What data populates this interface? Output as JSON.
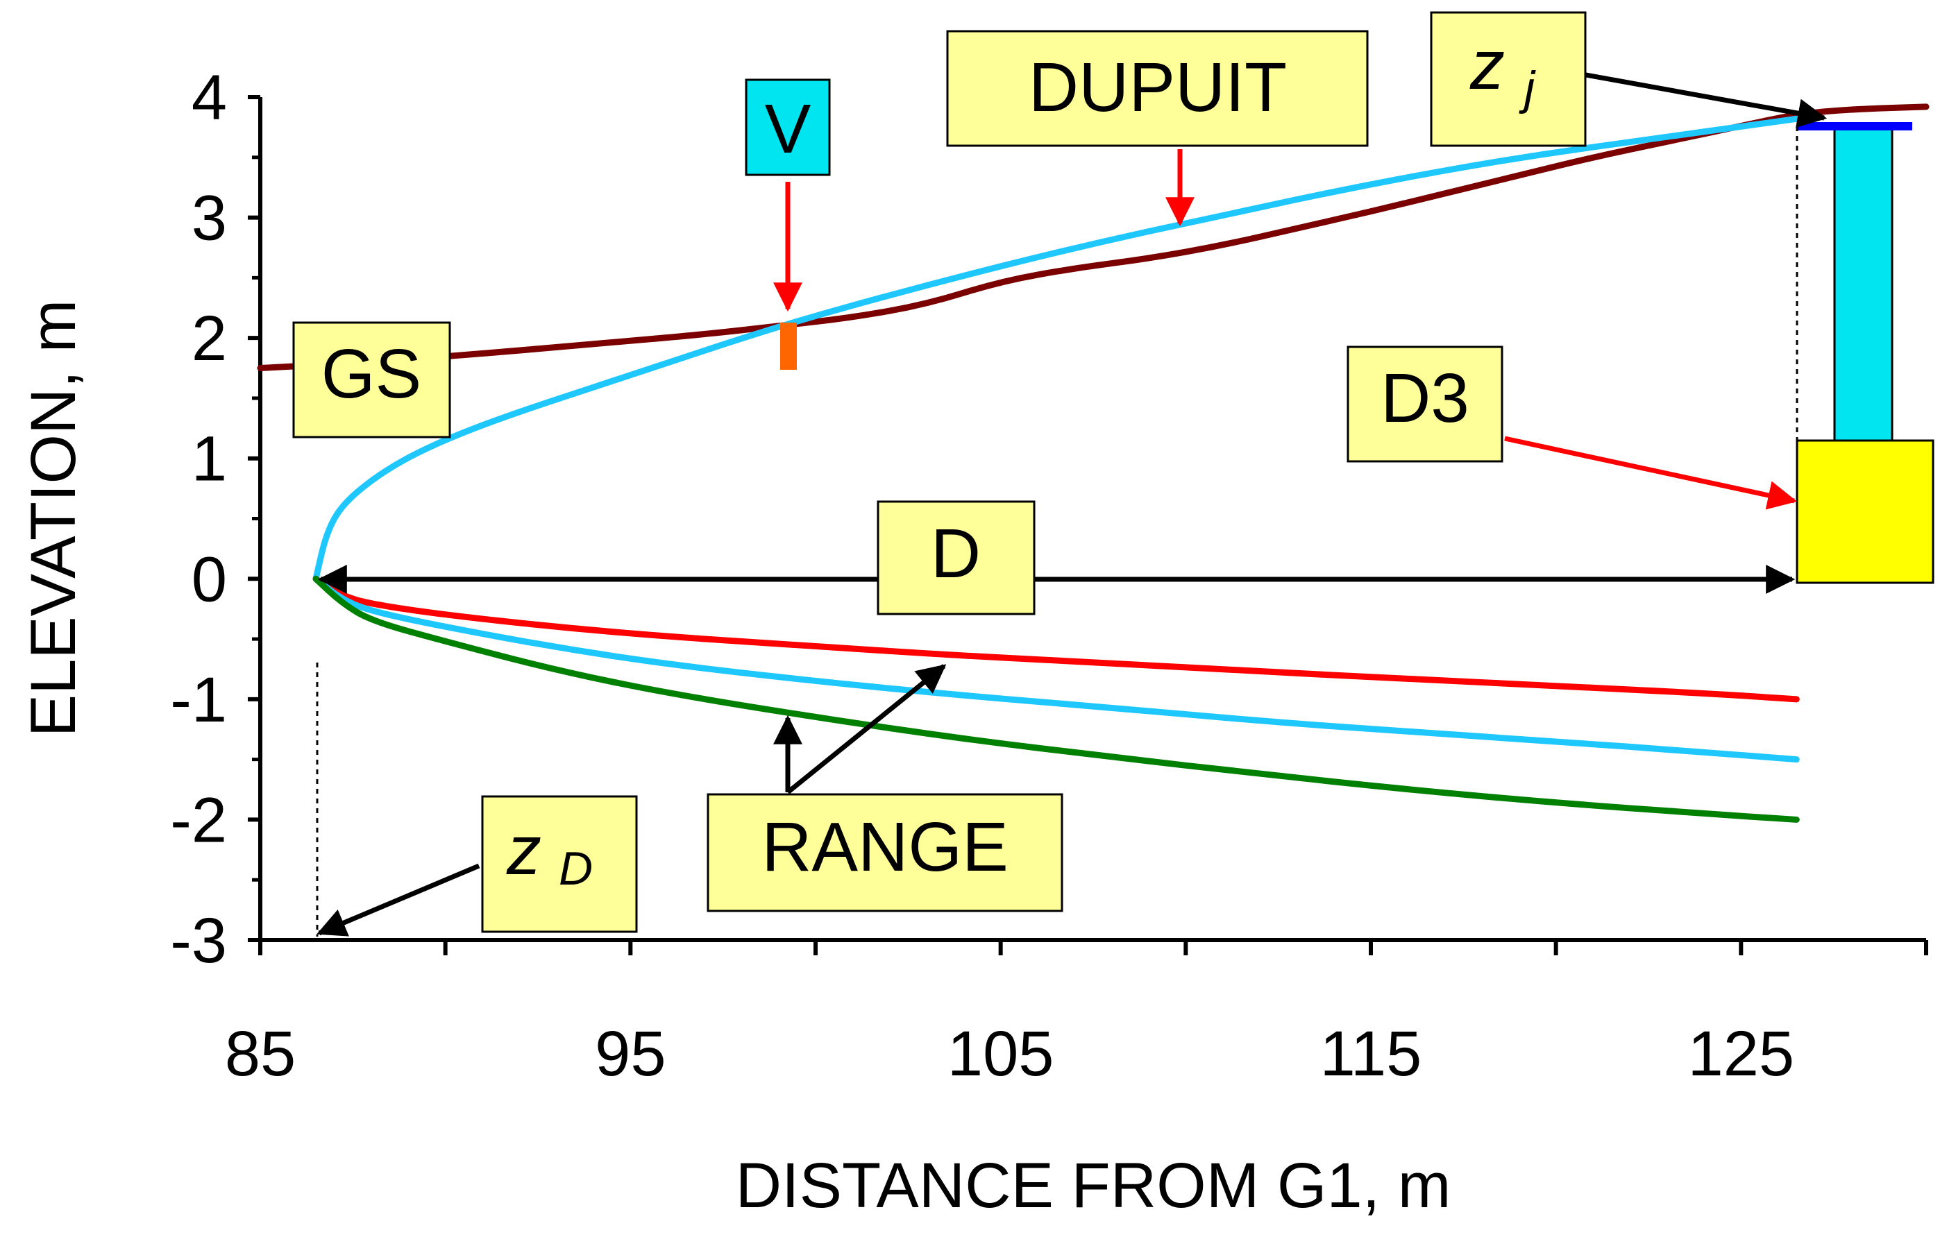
{
  "chart_data": {
    "type": "line",
    "xlabel": "DISTANCE FROM G1, m",
    "ylabel": "ELEVATION, m",
    "xlim": [
      85,
      130
    ],
    "ylim": [
      -3,
      4
    ],
    "x_ticks": [
      "85",
      "95",
      "105",
      "115",
      "125"
    ],
    "y_ticks": [
      "4",
      "3",
      "2",
      "1",
      "0",
      "-1",
      "-2",
      "-3"
    ],
    "grid": false,
    "series": [
      {
        "name": "GS",
        "color": "#7b0000",
        "points": [
          [
            85,
            1.75
          ],
          [
            88,
            1.8
          ],
          [
            91,
            1.87
          ],
          [
            94,
            1.95
          ],
          [
            97,
            2.03
          ],
          [
            99,
            2.1
          ],
          [
            101,
            2.17
          ],
          [
            103,
            2.28
          ],
          [
            105,
            2.47
          ],
          [
            107,
            2.58
          ],
          [
            109,
            2.66
          ],
          [
            111,
            2.77
          ],
          [
            113,
            2.91
          ],
          [
            115,
            3.05
          ],
          [
            117,
            3.2
          ],
          [
            119,
            3.35
          ],
          [
            121,
            3.5
          ],
          [
            123,
            3.63
          ],
          [
            125,
            3.76
          ],
          [
            126.5,
            3.86
          ],
          [
            128,
            3.9
          ],
          [
            130,
            3.92
          ]
        ]
      },
      {
        "name": "DUPUIT",
        "color": "#1ec8ff",
        "points": [
          [
            86.5,
            0.0
          ],
          [
            86.8,
            0.4
          ],
          [
            87.3,
            0.65
          ],
          [
            88.5,
            0.93
          ],
          [
            90,
            1.16
          ],
          [
            92,
            1.39
          ],
          [
            95,
            1.69
          ],
          [
            99,
            2.1
          ],
          [
            103,
            2.44
          ],
          [
            107,
            2.75
          ],
          [
            111,
            3.02
          ],
          [
            115,
            3.28
          ],
          [
            119,
            3.5
          ],
          [
            123,
            3.67
          ],
          [
            126.5,
            3.82
          ]
        ]
      },
      {
        "name": "",
        "color": "#ff0000",
        "points": [
          [
            86.5,
            0.0
          ],
          [
            87.2,
            -0.14
          ],
          [
            88,
            -0.21
          ],
          [
            90,
            -0.3
          ],
          [
            93,
            -0.4
          ],
          [
            96,
            -0.48
          ],
          [
            100,
            -0.56
          ],
          [
            104,
            -0.64
          ],
          [
            108,
            -0.7
          ],
          [
            112,
            -0.77
          ],
          [
            116,
            -0.83
          ],
          [
            120,
            -0.89
          ],
          [
            124,
            -0.95
          ],
          [
            126.5,
            -1.0
          ]
        ]
      },
      {
        "name": "",
        "color": "#1ec8ff",
        "points": [
          [
            86.5,
            0.0
          ],
          [
            87.2,
            -0.17
          ],
          [
            88,
            -0.27
          ],
          [
            90,
            -0.4
          ],
          [
            93,
            -0.57
          ],
          [
            96,
            -0.71
          ],
          [
            100,
            -0.85
          ],
          [
            104,
            -0.97
          ],
          [
            108,
            -1.07
          ],
          [
            112,
            -1.18
          ],
          [
            116,
            -1.27
          ],
          [
            120,
            -1.35
          ],
          [
            124,
            -1.44
          ],
          [
            126.5,
            -1.5
          ]
        ]
      },
      {
        "name": "",
        "color": "#008000",
        "points": [
          [
            86.5,
            0.0
          ],
          [
            87.2,
            -0.2
          ],
          [
            88,
            -0.35
          ],
          [
            90,
            -0.52
          ],
          [
            93,
            -0.76
          ],
          [
            96,
            -0.95
          ],
          [
            100,
            -1.15
          ],
          [
            104,
            -1.33
          ],
          [
            108,
            -1.48
          ],
          [
            112,
            -1.62
          ],
          [
            116,
            -1.75
          ],
          [
            120,
            -1.86
          ],
          [
            124,
            -1.95
          ],
          [
            126.5,
            -2.0
          ]
        ]
      }
    ],
    "annotations": [
      {
        "label": "V",
        "color": "#00e5f0"
      },
      {
        "label": "DUPUIT",
        "color": "#ffff99"
      },
      {
        "label": "z",
        "sub": "j",
        "color": "#ffff99"
      },
      {
        "label": "GS",
        "color": "#ffff99"
      },
      {
        "label": "D3",
        "color": "#ffff99"
      },
      {
        "label": "D",
        "color": "#ffff99"
      },
      {
        "label": "RANGE",
        "color": "#ffff99"
      },
      {
        "label": "z",
        "sub": "D",
        "color": "#ffff99"
      }
    ]
  }
}
